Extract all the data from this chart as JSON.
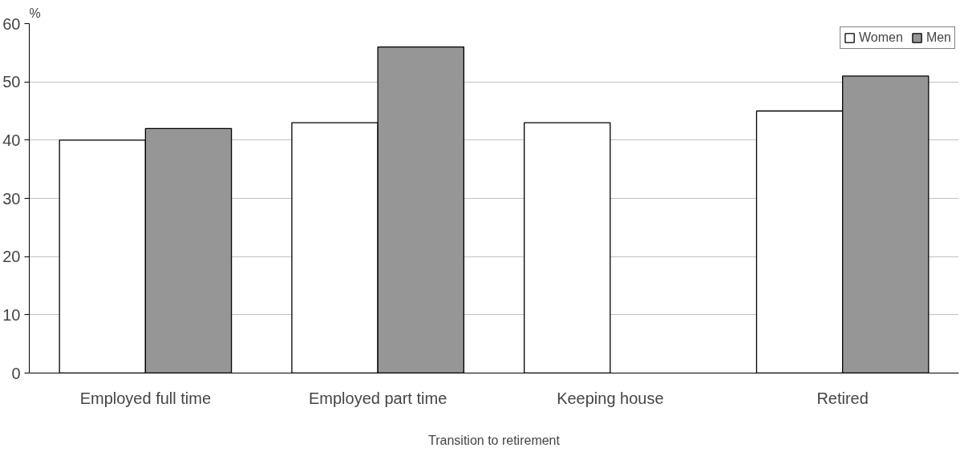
{
  "chart_data": {
    "type": "bar",
    "xlabel": "Transition to retirement",
    "ylabel": "%",
    "categories": [
      "Employed full time",
      "Employed part time",
      "Keeping house",
      "Retired"
    ],
    "series": [
      {
        "name": "Women",
        "color": "#ffffff",
        "values": [
          40,
          43,
          43,
          45
        ]
      },
      {
        "name": "Men",
        "color": "#969696",
        "values": [
          42,
          56,
          null,
          51
        ]
      }
    ],
    "ylim": [
      0,
      60
    ],
    "yticks": [
      0,
      10,
      20,
      30,
      40,
      50,
      60
    ],
    "grid": "y",
    "legend": "top right"
  }
}
